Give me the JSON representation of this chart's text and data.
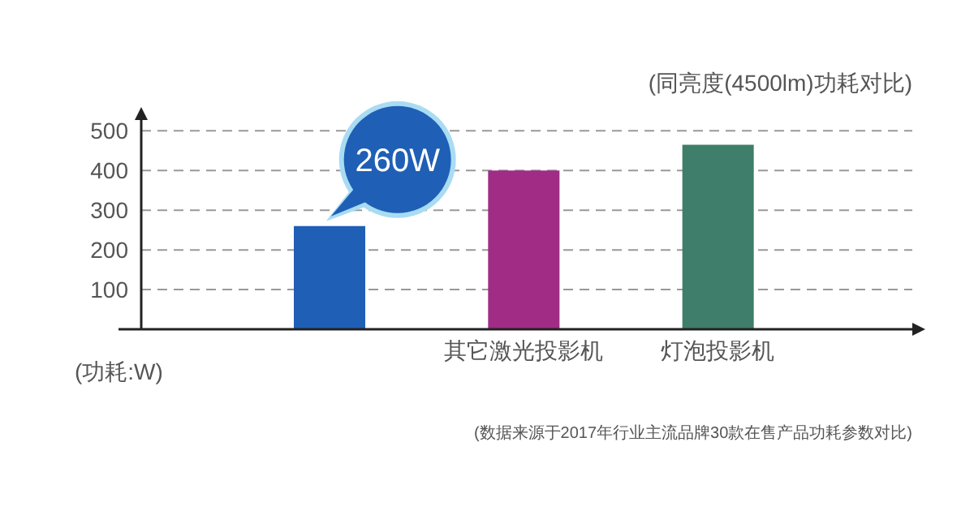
{
  "chart_data": {
    "type": "bar",
    "title": "(同亮度(4500lm)功耗对比)",
    "ylabel": "(功耗:W)",
    "categories": [
      null,
      "其它激光投影机",
      "灯泡投影机"
    ],
    "values": [
      260,
      400,
      465
    ],
    "colors": [
      "#1f5fb5",
      "#a02c86",
      "#3e7e6a"
    ],
    "ylim": [
      0,
      560
    ],
    "yticks": [
      100,
      200,
      300,
      400,
      500
    ],
    "grid": "y",
    "legend": false,
    "annotations": [
      "260W",
      "(数据来源于2017年行业主流品牌30款在售产品功耗参数对比)"
    ]
  }
}
